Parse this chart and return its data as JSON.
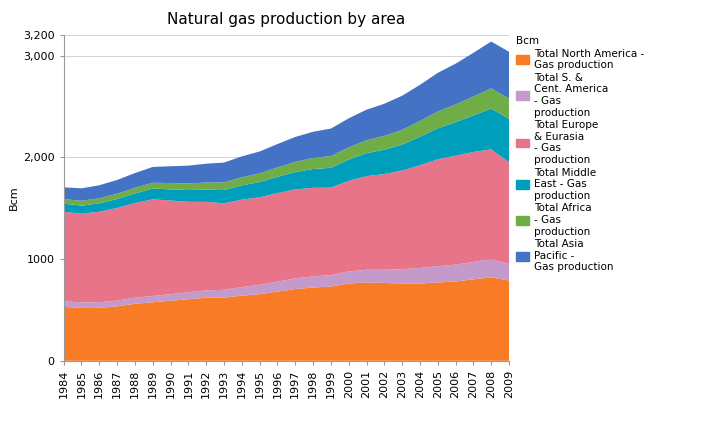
{
  "title": "Natural gas production by area",
  "ylabel": "Bcm",
  "years": [
    1984,
    1985,
    1986,
    1987,
    1988,
    1989,
    1990,
    1991,
    1992,
    1993,
    1994,
    1995,
    1996,
    1997,
    1998,
    1999,
    2000,
    2001,
    2002,
    2003,
    2004,
    2005,
    2006,
    2007,
    2008,
    2009
  ],
  "series": {
    "Total North America -\nGas production": [
      530,
      520,
      520,
      535,
      560,
      575,
      590,
      605,
      620,
      620,
      640,
      655,
      680,
      705,
      720,
      730,
      760,
      770,
      765,
      760,
      760,
      770,
      780,
      800,
      820,
      790
    ],
    "Total S. &\nCent. America\n- Gas\nproduction": [
      55,
      55,
      55,
      57,
      60,
      62,
      65,
      68,
      72,
      78,
      84,
      92,
      98,
      105,
      110,
      112,
      118,
      125,
      130,
      140,
      152,
      160,
      165,
      172,
      178,
      162
    ],
    "Total Europe\n& Eurasia\n- Gas\nproduction": [
      880,
      870,
      890,
      910,
      930,
      950,
      920,
      890,
      870,
      850,
      860,
      860,
      870,
      875,
      870,
      860,
      890,
      920,
      940,
      970,
      1010,
      1050,
      1070,
      1080,
      1080,
      1000
    ],
    "Total Middle\nEast - Gas\nproduction": [
      80,
      80,
      82,
      88,
      95,
      105,
      110,
      115,
      120,
      130,
      140,
      150,
      160,
      170,
      185,
      195,
      210,
      225,
      240,
      255,
      280,
      305,
      330,
      360,
      400,
      425
    ],
    "Total Africa\n- Gas\nproduction": [
      45,
      48,
      50,
      52,
      55,
      58,
      62,
      65,
      70,
      75,
      80,
      85,
      92,
      100,
      108,
      115,
      120,
      128,
      136,
      145,
      155,
      165,
      175,
      185,
      200,
      200
    ],
    "Total Asia\nPacific -\nGas production": [
      115,
      122,
      128,
      135,
      145,
      155,
      165,
      175,
      185,
      195,
      205,
      215,
      230,
      245,
      258,
      270,
      285,
      300,
      315,
      335,
      355,
      380,
      400,
      430,
      460,
      460
    ]
  },
  "colors": {
    "Total North America -\nGas production": "#F97B25",
    "Total S. &\nCent. America\n- Gas\nproduction": "#C39AC9",
    "Total Europe\n& Eurasia\n- Gas\nproduction": "#E8748A",
    "Total Middle\nEast - Gas\nproduction": "#009EBD",
    "Total Africa\n- Gas\nproduction": "#70AD47",
    "Total Asia\nPacific -\nGas production": "#4472C4"
  },
  "ylim": [
    0,
    3200
  ],
  "yticks": [
    0,
    1000,
    2000,
    3000,
    3200
  ],
  "ytick_labels": [
    "0",
    "1000",
    "2,000",
    "3,000",
    "3,200"
  ],
  "title_fontsize": 11,
  "axis_fontsize": 8,
  "legend_fontsize": 7.5
}
